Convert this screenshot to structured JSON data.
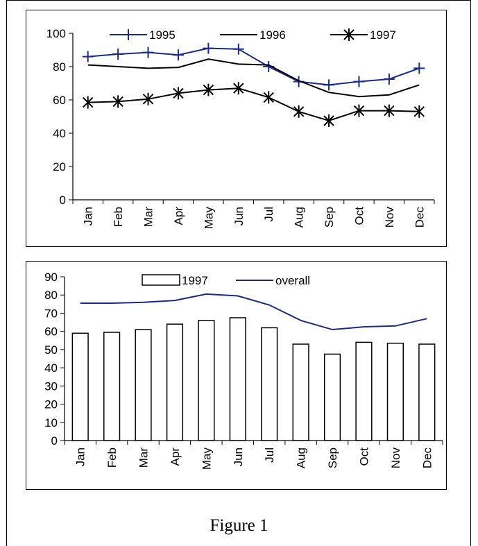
{
  "caption": "Figure 1",
  "chart_data": [
    {
      "type": "line",
      "categories": [
        "Jan",
        "Feb",
        "Mar",
        "Apr",
        "May",
        "Jun",
        "Jul",
        "Aug",
        "Sep",
        "Oct",
        "Nov",
        "Dec"
      ],
      "ylim": [
        0,
        100
      ],
      "yticks": [
        0,
        20,
        40,
        60,
        80,
        100
      ],
      "legend_position": "top",
      "series": [
        {
          "name": "1995",
          "marker": "plus",
          "color": "#1a2a8a",
          "values": [
            86,
            87.5,
            88.5,
            87,
            91,
            90.5,
            80,
            71,
            69,
            71,
            72.5,
            79
          ]
        },
        {
          "name": "1996",
          "marker": "none",
          "color": "#000000",
          "values": [
            81,
            80,
            79,
            79.5,
            84.5,
            81.5,
            81,
            71.5,
            64.5,
            62,
            63,
            69
          ]
        },
        {
          "name": "1997",
          "marker": "asterisk",
          "color": "#000000",
          "values": [
            58.5,
            59,
            60.5,
            64,
            66,
            67,
            61.5,
            53,
            47.5,
            53.5,
            53.5,
            53
          ]
        }
      ]
    },
    {
      "type": "bar",
      "categories": [
        "Jan",
        "Feb",
        "Mar",
        "Apr",
        "May",
        "Jun",
        "Jul",
        "Aug",
        "Sep",
        "Oct",
        "Nov",
        "Dec"
      ],
      "ylim": [
        0,
        90
      ],
      "yticks": [
        0,
        10,
        20,
        30,
        40,
        50,
        60,
        70,
        80,
        90
      ],
      "legend_position": "top",
      "series": [
        {
          "name": "1997",
          "kind": "bar",
          "color": "#000000",
          "values": [
            59,
            59.5,
            61,
            64,
            66,
            67.5,
            62,
            53,
            47.5,
            54,
            53.5,
            53
          ]
        },
        {
          "name": "overall",
          "kind": "line",
          "color": "#1a2a8a",
          "values": [
            75.5,
            75.5,
            76,
            77,
            80.5,
            79.5,
            74.5,
            66,
            61,
            62.5,
            63,
            67
          ]
        }
      ]
    }
  ]
}
